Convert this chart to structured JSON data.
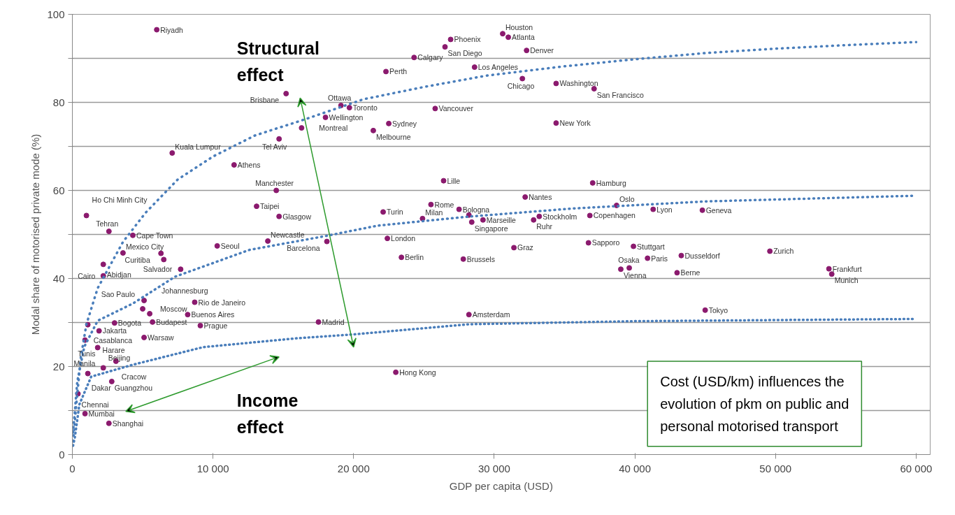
{
  "chart_data": {
    "type": "scatter",
    "xlabel": "GDP per capita (USD)",
    "ylabel": "Modal share of motorised private mode (%)",
    "xlim": [
      0,
      61000
    ],
    "ylim": [
      0,
      100
    ],
    "xticks": [
      0,
      {
        "value": 10000,
        "label": "10 000"
      },
      {
        "value": 20000,
        "label": "20 000"
      },
      {
        "value": 30000,
        "label": "30 000"
      },
      {
        "value": 40000,
        "label": "40 000"
      },
      {
        "value": 50000,
        "label": "50 000"
      },
      {
        "value": 60000,
        "label": "60 000"
      }
    ],
    "yticks": [
      0,
      {
        "value": 10,
        "label": null
      },
      20,
      {
        "value": 30,
        "label": null
      },
      40,
      {
        "value": 50,
        "label": null
      },
      60,
      {
        "value": 70,
        "label": null
      },
      80,
      {
        "value": 90,
        "label": null
      },
      100
    ],
    "grid": "y",
    "marker": "circle",
    "series": [
      {
        "color": "#8b1a6e",
        "x": [
          6000,
          26900,
          26500,
          30600,
          31000,
          32300,
          24300,
          22300,
          28600,
          32000,
          34400,
          37100,
          15200,
          19100,
          19700,
          25800,
          18000,
          16300,
          22500,
          21400,
          34400,
          14700,
          7100,
          11500,
          26400,
          14500,
          37000,
          32200,
          25500,
          27500,
          28200,
          28400,
          29200,
          24900,
          22100,
          33200,
          32800,
          36800,
          38700,
          41300,
          44800,
          22400,
          18100,
          23400,
          27800,
          31400,
          36700,
          39900,
          40900,
          39000,
          39600,
          43300,
          43000,
          49600,
          53800,
          54000,
          28200,
          45000,
          17500,
          23000,
          1000,
          2600,
          4300,
          3600,
          6300,
          6500,
          2200,
          2200,
          10300,
          7700,
          13100,
          14700,
          13900,
          5100,
          5000,
          5500,
          8700,
          8200,
          9100,
          5700,
          3000,
          1100,
          1900,
          900,
          1800,
          5100,
          3100,
          2200,
          2800,
          1100,
          400,
          900,
          2600
        ],
        "values": [
          96.5,
          94.3,
          92.6,
          95.6,
          94.8,
          91.8,
          90.2,
          87.0,
          88.0,
          85.4,
          84.3,
          83.1,
          82.0,
          79.3,
          78.8,
          78.6,
          76.6,
          74.2,
          75.2,
          73.6,
          75.3,
          71.7,
          68.5,
          65.8,
          62.2,
          60.0,
          61.7,
          58.5,
          56.8,
          55.7,
          54.4,
          52.8,
          53.3,
          53.6,
          55.1,
          54.1,
          53.3,
          54.3,
          56.6,
          55.7,
          55.5,
          49.1,
          48.4,
          44.8,
          44.4,
          47.0,
          48.1,
          47.3,
          44.6,
          42.1,
          42.4,
          45.2,
          41.3,
          46.2,
          42.2,
          41.0,
          31.8,
          32.8,
          30.1,
          18.7,
          54.3,
          50.7,
          49.8,
          45.8,
          45.7,
          44.3,
          43.2,
          40.6,
          47.4,
          42.1,
          56.4,
          54.1,
          48.5,
          35.0,
          33.1,
          32.0,
          34.6,
          31.8,
          29.3,
          30.1,
          29.9,
          29.5,
          28.1,
          26.0,
          24.3,
          26.6,
          21.2,
          19.7,
          16.6,
          18.4,
          13.8,
          9.3,
          7.1
        ]
      },
      {
        "type": "line",
        "color": "#4a7ebb",
        "marker": "none",
        "line_style": "dotted",
        "x": [
          50,
          300,
          600,
          1000,
          1800,
          3600,
          5200,
          7500,
          10000,
          13000,
          16400,
          20700,
          25000,
          29500,
          35000,
          40000,
          45000,
          50000,
          55000,
          60000
        ],
        "values": [
          3,
          12,
          22,
          29.6,
          37.8,
          48.3,
          54.9,
          62.5,
          67.7,
          72.5,
          76,
          80.7,
          83.5,
          86.1,
          88.2,
          89.8,
          91.2,
          92.2,
          93,
          93.7
        ]
      },
      {
        "type": "line",
        "color": "#4a7ebb",
        "marker": "none",
        "line_style": "dotted",
        "x": [
          50,
          350,
          850,
          1800,
          4300,
          7300,
          10000,
          12600,
          18100,
          21700,
          28000,
          35600,
          45000,
          60000
        ],
        "values": [
          5,
          16.6,
          24.5,
          30.4,
          34.3,
          40.4,
          43.5,
          46.5,
          49.7,
          52,
          54,
          55.9,
          57.5,
          58.8
        ]
      },
      {
        "type": "line",
        "color": "#4a7ebb",
        "marker": "none",
        "line_style": "dotted",
        "x": [
          50,
          180,
          500,
          1340,
          4300,
          9300,
          15900,
          20000,
          28200,
          40000,
          60000
        ],
        "values": [
          2,
          4,
          11.4,
          17.7,
          20.4,
          24.4,
          26.4,
          27.3,
          29.6,
          30.3,
          30.8
        ]
      }
    ],
    "annotations": [
      "Structural effect",
      "Income effect",
      "Cost (USD/km) influences the evolution of pkm on public and personal motorised transport",
      "Manila",
      {
        "text": "Riyadh",
        "x": 6000,
        "y": 96.5
      },
      {
        "text": "Phoenix",
        "x": 26900,
        "y": 94.3
      },
      {
        "text": "San Diego",
        "x": 26500,
        "y": 92.6
      },
      {
        "text": "Houston",
        "x": 30600,
        "y": 95.6
      },
      {
        "text": "Atlanta",
        "x": 31000,
        "y": 94.8
      },
      {
        "text": "Denver",
        "x": 32300,
        "y": 91.8
      },
      {
        "text": "Calgary",
        "x": 24300,
        "y": 90.2
      },
      {
        "text": "Perth",
        "x": 22300,
        "y": 87.0
      },
      {
        "text": "Los Angeles",
        "x": 28600,
        "y": 88.0
      },
      {
        "text": "Chicago",
        "x": 32000,
        "y": 85.4
      },
      {
        "text": "Washington",
        "x": 34400,
        "y": 84.3
      },
      {
        "text": "San Francisco",
        "x": 37100,
        "y": 83.1
      },
      {
        "text": "Brisbane",
        "x": 15200,
        "y": 82.0
      },
      {
        "text": "Ottawa",
        "x": 19100,
        "y": 79.3
      },
      {
        "text": "Toronto",
        "x": 19700,
        "y": 78.8
      },
      {
        "text": "Vancouver",
        "x": 25800,
        "y": 78.6
      },
      {
        "text": "Wellington",
        "x": 18000,
        "y": 76.6
      },
      {
        "text": "Montreal",
        "x": 16300,
        "y": 74.2
      },
      {
        "text": "Sydney",
        "x": 22500,
        "y": 75.2
      },
      {
        "text": "Melbourne",
        "x": 21400,
        "y": 73.6
      },
      {
        "text": "New York",
        "x": 34400,
        "y": 75.3
      },
      {
        "text": "Tel Aviv",
        "x": 14700,
        "y": 71.7
      },
      {
        "text": "Kuala Lumpur",
        "x": 7100,
        "y": 68.5
      },
      {
        "text": "Athens",
        "x": 11500,
        "y": 65.8
      },
      {
        "text": "Lille",
        "x": 26400,
        "y": 62.2
      },
      {
        "text": "Manchester",
        "x": 14500,
        "y": 60.0
      },
      {
        "text": "Hamburg",
        "x": 37000,
        "y": 61.7
      },
      {
        "text": "Nantes",
        "x": 32200,
        "y": 58.5
      },
      {
        "text": "Rome",
        "x": 25500,
        "y": 56.8
      },
      {
        "text": "Bologna",
        "x": 27500,
        "y": 55.7
      },
      {
        "text": "Singapore",
        "x": 28400,
        "y": 52.8
      },
      {
        "text": "Marseille",
        "x": 29200,
        "y": 53.3
      },
      {
        "text": "Milan",
        "x": 24900,
        "y": 53.6
      },
      {
        "text": "Turin",
        "x": 22100,
        "y": 55.1
      },
      {
        "text": "Stockholm",
        "x": 33200,
        "y": 54.1
      },
      {
        "text": "Ruhr",
        "x": 32800,
        "y": 53.3
      },
      {
        "text": "Copenhagen",
        "x": 36800,
        "y": 54.3
      },
      {
        "text": "Oslo",
        "x": 38700,
        "y": 56.6
      },
      {
        "text": "Lyon",
        "x": 41300,
        "y": 55.7
      },
      {
        "text": "Geneva",
        "x": 44800,
        "y": 55.5
      },
      {
        "text": "London",
        "x": 22400,
        "y": 49.1
      },
      {
        "text": "Barcelona",
        "x": 18100,
        "y": 48.4
      },
      {
        "text": "Berlin",
        "x": 23400,
        "y": 44.8
      },
      {
        "text": "Brussels",
        "x": 27800,
        "y": 44.4
      },
      {
        "text": "Graz",
        "x": 31400,
        "y": 47.0
      },
      {
        "text": "Sapporo",
        "x": 36700,
        "y": 48.1
      },
      {
        "text": "Stuttgart",
        "x": 39900,
        "y": 47.3
      },
      {
        "text": "Paris",
        "x": 40900,
        "y": 44.6
      },
      {
        "text": "Vienna",
        "x": 39000,
        "y": 42.1
      },
      {
        "text": "Osaka",
        "x": 39600,
        "y": 42.4
      },
      {
        "text": "Dusseldorf",
        "x": 43300,
        "y": 45.2
      },
      {
        "text": "Berne",
        "x": 43000,
        "y": 41.3
      },
      {
        "text": "Zurich",
        "x": 49600,
        "y": 46.2
      },
      {
        "text": "Frankfurt",
        "x": 53800,
        "y": 42.2
      },
      {
        "text": "Munich",
        "x": 54000,
        "y": 41.0
      },
      {
        "text": "Amsterdam",
        "x": 28200,
        "y": 31.8
      },
      {
        "text": "Tokyo",
        "x": 45000,
        "y": 32.8
      },
      {
        "text": "Madrid",
        "x": 17500,
        "y": 30.1
      },
      {
        "text": "Hong Kong",
        "x": 23000,
        "y": 18.7
      },
      {
        "text": "Ho Chi Minh City",
        "x": 1000,
        "y": 54.3
      },
      {
        "text": "Tehran",
        "x": 2600,
        "y": 50.7
      },
      {
        "text": "Cape Town",
        "x": 4300,
        "y": 49.8
      },
      {
        "text": "Mexico City",
        "x": 3600,
        "y": 45.8
      },
      {
        "text": "Curitiba",
        "x": 6300,
        "y": 45.7
      },
      {
        "text": "Abidjan",
        "x": 2200,
        "y": 43.2
      },
      {
        "text": "Cairo",
        "x": 2200,
        "y": 40.6
      },
      {
        "text": "Seoul",
        "x": 10300,
        "y": 47.4
      },
      {
        "text": "Salvador",
        "x": 7700,
        "y": 42.1
      },
      {
        "text": "Taipei",
        "x": 13100,
        "y": 56.4
      },
      {
        "text": "Glasgow",
        "x": 14700,
        "y": 54.1
      },
      {
        "text": "Newcastle",
        "x": 13900,
        "y": 48.5
      },
      {
        "text": "Johannesburg",
        "x": 5100,
        "y": 35.0
      },
      {
        "text": "Moscow",
        "x": 5000,
        "y": 33.1
      },
      {
        "text": "Rio de Janeiro",
        "x": 8700,
        "y": 34.6
      },
      {
        "text": "Buenos Aires",
        "x": 8200,
        "y": 31.8
      },
      {
        "text": "Prague",
        "x": 9100,
        "y": 29.3
      },
      {
        "text": "Budapest",
        "x": 5700,
        "y": 30.1
      },
      {
        "text": "Bogota",
        "x": 3000,
        "y": 29.9
      },
      {
        "text": "Casablanca",
        "x": 1100,
        "y": 29.5
      },
      {
        "text": "Sao Paulo",
        "x": 1300,
        "y": 33.3
      },
      {
        "text": "Jakarta",
        "x": 1900,
        "y": 28.1
      },
      {
        "text": "Harare",
        "x": 900,
        "y": 26.0
      },
      {
        "text": "Beijing",
        "x": 1800,
        "y": 24.3
      },
      {
        "text": "Warsaw",
        "x": 5100,
        "y": 26.6
      },
      {
        "text": "Cracow",
        "x": 3100,
        "y": 21.2
      },
      {
        "text": "Tunis",
        "x": 2200,
        "y": 19.7
      },
      {
        "text": "Guangzhou",
        "x": 2800,
        "y": 16.6
      },
      {
        "text": "Dakar",
        "x": 1100,
        "y": 18.4
      },
      {
        "text": "Chennai",
        "x": 400,
        "y": 13.8
      },
      {
        "text": "Mumbai",
        "x": 900,
        "y": 9.3
      },
      {
        "text": "Shanghai",
        "x": 2600,
        "y": 7.1
      }
    ]
  }
}
